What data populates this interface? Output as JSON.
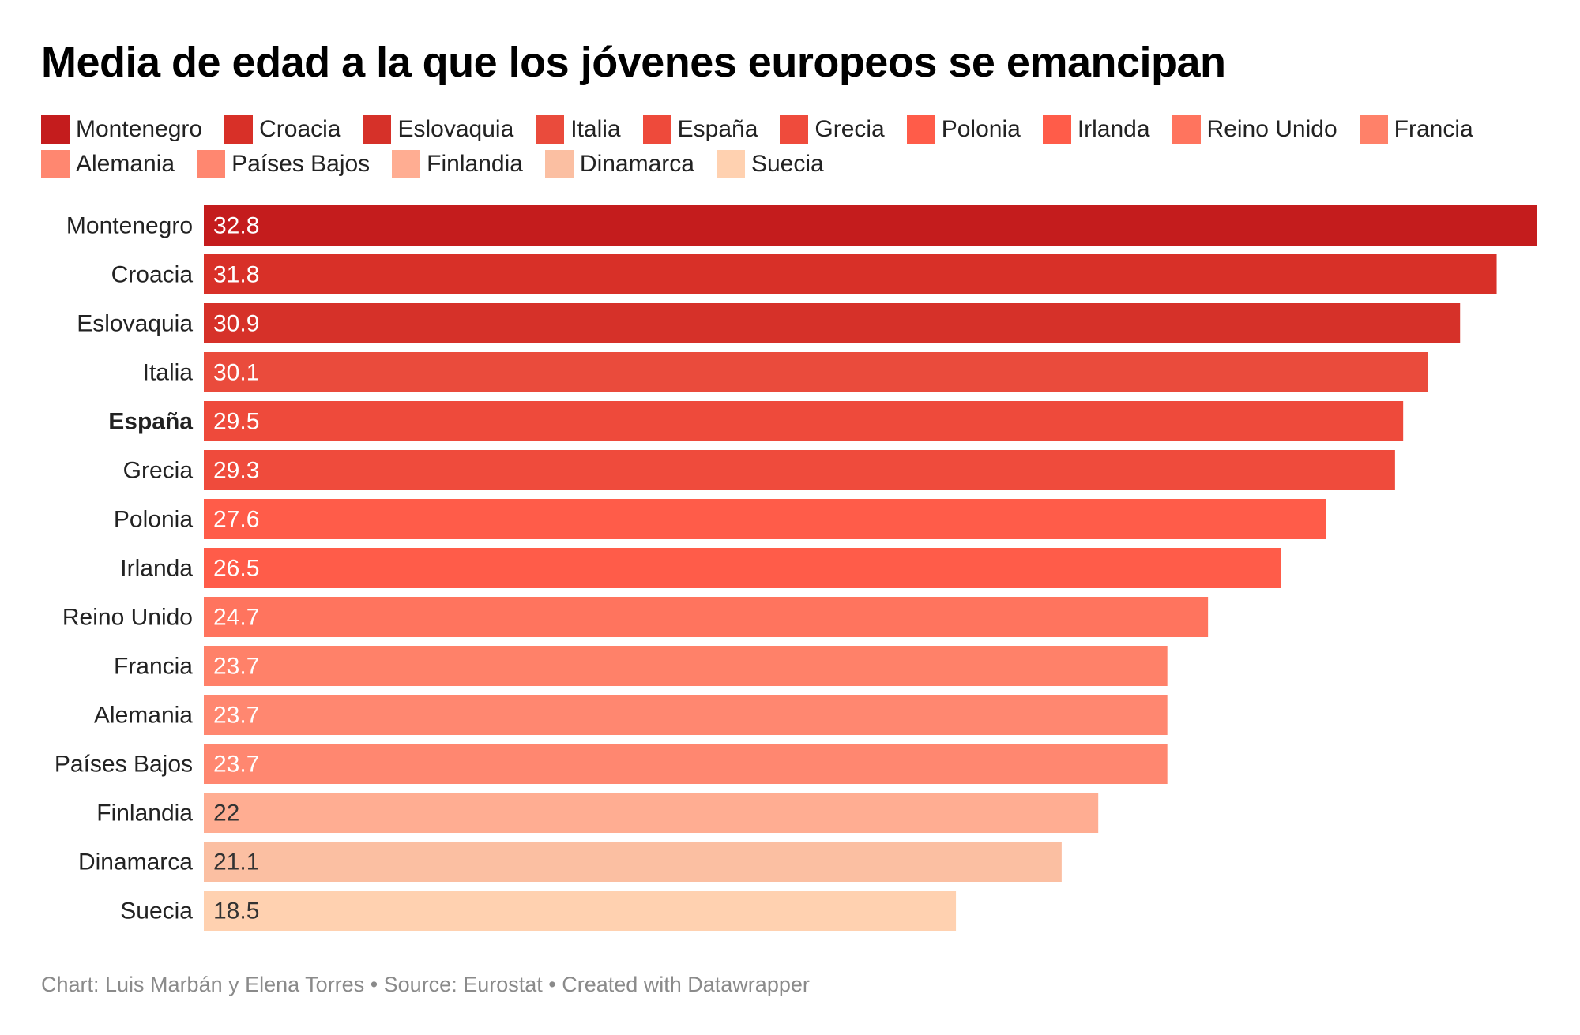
{
  "chart_data": {
    "type": "bar",
    "orientation": "horizontal",
    "title": "Media de edad a la que los jóvenes europeos se emancipan",
    "xlabel": "",
    "ylabel": "",
    "xlim": [
      0,
      32.8
    ],
    "grid": false,
    "legend_position": "top",
    "highlighted_category": "España",
    "categories": [
      "Montenegro",
      "Croacia",
      "Eslovaquia",
      "Italia",
      "España",
      "Grecia",
      "Polonia",
      "Irlanda",
      "Reino Unido",
      "Francia",
      "Alemania",
      "Países Bajos",
      "Finlandia",
      "Dinamarca",
      "Suecia"
    ],
    "values": [
      32.8,
      31.8,
      30.9,
      30.1,
      29.5,
      29.3,
      27.6,
      26.5,
      24.7,
      23.7,
      23.7,
      23.7,
      22,
      21.1,
      18.5
    ],
    "value_labels": [
      "32.8",
      "31.8",
      "30.9",
      "30.1",
      "29.5",
      "29.3",
      "27.6",
      "26.5",
      "24.7",
      "23.7",
      "23.7",
      "23.7",
      "22",
      "21.1",
      "18.5"
    ],
    "colors": [
      "#c41c1d",
      "#d83028",
      "#d63129",
      "#ea4b3c",
      "#ee4a3b",
      "#ef4b3c",
      "#ff5c49",
      "#ff5c49",
      "#ff745e",
      "#ff8169",
      "#ff8770",
      "#ff8770",
      "#ffad92",
      "#fbbfa2",
      "#ffd1b0"
    ],
    "value_label_colors": [
      "#ffffff",
      "#ffffff",
      "#ffffff",
      "#ffffff",
      "#ffffff",
      "#ffffff",
      "#ffffff",
      "#ffffff",
      "#ffffff",
      "#ffffff",
      "#ffffff",
      "#ffffff",
      "#333333",
      "#333333",
      "#333333"
    ],
    "legend": [
      "Montenegro",
      "Croacia",
      "Eslovaquia",
      "Italia",
      "España",
      "Grecia",
      "Polonia",
      "Irlanda",
      "Reino Unido",
      "Francia",
      "Alemania",
      "Países Bajos",
      "Finlandia",
      "Dinamarca",
      "Suecia"
    ]
  },
  "footer": {
    "text": "Chart: Luis Marbán y Elena Torres • Source: Eurostat • Created with Datawrapper"
  }
}
